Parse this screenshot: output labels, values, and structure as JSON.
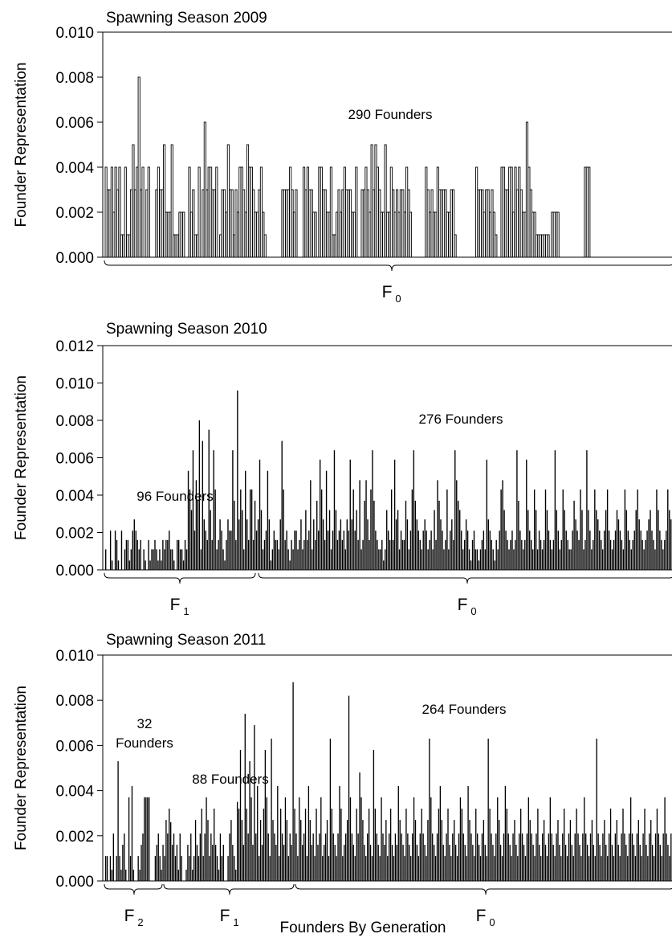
{
  "figure": {
    "xlabel": "Founders By Generation"
  },
  "chart_data": [
    {
      "type": "bar",
      "title": "Spawning Season 2009",
      "ylabel": "Founder Representation",
      "ylim": [
        0,
        0.01
      ],
      "yticks": [
        "0.000",
        "0.002",
        "0.004",
        "0.006",
        "0.008",
        "0.010"
      ],
      "bar_color": "#000000",
      "bar_style": "outlined",
      "groups": [
        {
          "generation": "F",
          "sub": "0",
          "founders_label": "290 Founders",
          "count": 290
        }
      ],
      "values": [
        0.004,
        0.003,
        0.003,
        0.004,
        0.002,
        0.004,
        0.003,
        0.004,
        0.001,
        0.001,
        0.004,
        0.001,
        0.001,
        0.003,
        0.005,
        0.003,
        0.004,
        0.008,
        0.003,
        0.004,
        0.0,
        0.003,
        0.004,
        0.0,
        0.0,
        0.0,
        0.003,
        0.004,
        0.003,
        0.003,
        0.005,
        0.002,
        0.002,
        0.002,
        0.005,
        0.001,
        0.001,
        0.001,
        0.002,
        0.002,
        0.002,
        0.0,
        0.0,
        0.004,
        0.002,
        0.003,
        0.001,
        0.001,
        0.004,
        0.0,
        0.003,
        0.006,
        0.003,
        0.004,
        0.004,
        0.003,
        0.003,
        0.004,
        0.0,
        0.001,
        0.003,
        0.003,
        0.002,
        0.005,
        0.003,
        0.003,
        0.001,
        0.003,
        0.002,
        0.004,
        0.004,
        0.003,
        0.002,
        0.005,
        0.004,
        0.004,
        0.003,
        0.002,
        0.002,
        0.003,
        0.004,
        0.002,
        0.001,
        0.0,
        0.0,
        0.0,
        0.0,
        0.0,
        0.0,
        0.0,
        0.0,
        0.003,
        0.003,
        0.003,
        0.003,
        0.004,
        0.003,
        0.002,
        0.003,
        0.0,
        0.0,
        0.0,
        0.004,
        0.003,
        0.004,
        0.003,
        0.003,
        0.002,
        0.002,
        0.0,
        0.004,
        0.004,
        0.003,
        0.003,
        0.002,
        0.002,
        0.004,
        0.001,
        0.001,
        0.002,
        0.003,
        0.002,
        0.003,
        0.004,
        0.003,
        0.003,
        0.003,
        0.002,
        0.002,
        0.004,
        0.0,
        0.0,
        0.003,
        0.003,
        0.004,
        0.003,
        0.002,
        0.005,
        0.003,
        0.005,
        0.004,
        0.003,
        0.002,
        0.002,
        0.005,
        0.002,
        0.002,
        0.004,
        0.003,
        0.002,
        0.003,
        0.002,
        0.003,
        0.003,
        0.002,
        0.004,
        0.003,
        0.002,
        0.0,
        0.0,
        0.0,
        0.0,
        0.0,
        0.0,
        0.0,
        0.004,
        0.003,
        0.002,
        0.003,
        0.002,
        0.002,
        0.004,
        0.003,
        0.003,
        0.003,
        0.003,
        0.002,
        0.002,
        0.003,
        0.003,
        0.001,
        0.0,
        0.0,
        0.0,
        0.0,
        0.0,
        0.0,
        0.0,
        0.0,
        0.0,
        0.0,
        0.004,
        0.003,
        0.003,
        0.003,
        0.002,
        0.003,
        0.003,
        0.002,
        0.003,
        0.002,
        0.001,
        0.0,
        0.0,
        0.004,
        0.004,
        0.003,
        0.003,
        0.004,
        0.004,
        0.002,
        0.004,
        0.003,
        0.004,
        0.003,
        0.002,
        0.002,
        0.006,
        0.004,
        0.003,
        0.002,
        0.002,
        0.001,
        0.001,
        0.001,
        0.001,
        0.001,
        0.001,
        0.001,
        0.0,
        0.002,
        0.002,
        0.002,
        0.002,
        0.0,
        0.0,
        0.0,
        0.0,
        0.0,
        0.0,
        0.0,
        0.0,
        0.0,
        0.0,
        0.0,
        0.0,
        0.0,
        0.004,
        0.004,
        0.004,
        0.0,
        0.0,
        0.0,
        0.0,
        0.0,
        0.0,
        0.0,
        0.0,
        0.0,
        0.0,
        0.0,
        0.0,
        0.0,
        0.0,
        0.0,
        0.0,
        0.0,
        0.0,
        0.0,
        0.0,
        0.0,
        0.0,
        0.0,
        0.0,
        0.0,
        0.0,
        0.0,
        0.0,
        0.0,
        0.0,
        0.0,
        0.0,
        0.0,
        0.0,
        0.0,
        0.0,
        0.0,
        0.0,
        0.0,
        0.0,
        0.0,
        0.0,
        0.0
      ]
    },
    {
      "type": "bar",
      "title": "Spawning Season 2010",
      "ylabel": "Founder Representation",
      "ylim": [
        0,
        0.012
      ],
      "yticks": [
        "0.000",
        "0.002",
        "0.004",
        "0.006",
        "0.008",
        "0.010",
        "0.012"
      ],
      "bar_color": "#000000",
      "bar_style": "solid",
      "groups": [
        {
          "generation": "F",
          "sub": "1",
          "founders_label": "96 Founders",
          "count": 96
        },
        {
          "generation": "F",
          "sub": "0",
          "founders_label": "276 Founders",
          "count": 276
        }
      ],
      "values": [
        0.0011,
        0.0,
        0.0,
        0.0021,
        0.0005,
        0.0,
        0.0021,
        0.0016,
        0.0005,
        0.0,
        0.0021,
        0.0,
        0.0011,
        0.0016,
        0.0016,
        0.0005,
        0.0011,
        0.0021,
        0.0027,
        0.0021,
        0.0016,
        0.0011,
        0.0016,
        0.0,
        0.0011,
        0.0005,
        0.0,
        0.0016,
        0.0005,
        0.0011,
        0.0011,
        0.0016,
        0.0011,
        0.0005,
        0.0011,
        0.0005,
        0.0016,
        0.0011,
        0.0016,
        0.0016,
        0.0021,
        0.0011,
        0.0011,
        0.0005,
        0.0,
        0.0016,
        0.0016,
        0.0011,
        0.0011,
        0.0005,
        0.0016,
        0.0011,
        0.0053,
        0.0043,
        0.0032,
        0.0064,
        0.0021,
        0.0048,
        0.0037,
        0.008,
        0.0011,
        0.0069,
        0.0027,
        0.0021,
        0.0016,
        0.0075,
        0.0032,
        0.0016,
        0.0064,
        0.0043,
        0.0011,
        0.0016,
        0.0027,
        0.0021,
        0.0011,
        0.0005,
        0.0016,
        0.0027,
        0.0021,
        0.0021,
        0.0064,
        0.0037,
        0.0016,
        0.0096,
        0.0027,
        0.0043,
        0.0032,
        0.0011,
        0.0053,
        0.0027,
        0.0016,
        0.0043,
        0.0043,
        0.0016,
        0.0037,
        0.0021,
        0.0027,
        0.0059,
        0.0032,
        0.0011,
        0.0016,
        0.0021,
        0.0053,
        0.0027,
        0.0005,
        0.0011,
        0.0021,
        0.0016,
        0.0016,
        0.0011,
        0.0027,
        0.0069,
        0.0043,
        0.0016,
        0.0021,
        0.0011,
        0.0005,
        0.0016,
        0.0011,
        0.0021,
        0.0021,
        0.0011,
        0.0016,
        0.0027,
        0.0011,
        0.0016,
        0.0032,
        0.0016,
        0.0021,
        0.0048,
        0.0011,
        0.0027,
        0.0016,
        0.0037,
        0.0021,
        0.0059,
        0.0043,
        0.0027,
        0.0016,
        0.0053,
        0.0021,
        0.0032,
        0.0011,
        0.0021,
        0.0064,
        0.0032,
        0.0016,
        0.0021,
        0.0027,
        0.0016,
        0.0021,
        0.0011,
        0.0027,
        0.0021,
        0.0059,
        0.0027,
        0.0043,
        0.0021,
        0.0032,
        0.0016,
        0.0048,
        0.0011,
        0.0016,
        0.0037,
        0.0048,
        0.0027,
        0.0016,
        0.0043,
        0.0064,
        0.0037,
        0.0021,
        0.0016,
        0.0011,
        0.0011,
        0.0016,
        0.0005,
        0.0011,
        0.0032,
        0.0021,
        0.0016,
        0.0043,
        0.0016,
        0.0059,
        0.0027,
        0.0032,
        0.0011,
        0.0021,
        0.0016,
        0.0016,
        0.0037,
        0.0027,
        0.0011,
        0.0021,
        0.0043,
        0.0064,
        0.0037,
        0.0027,
        0.0021,
        0.0016,
        0.0011,
        0.0021,
        0.0027,
        0.0021,
        0.0011,
        0.0016,
        0.0021,
        0.0011,
        0.0032,
        0.0016,
        0.0048,
        0.0037,
        0.0027,
        0.0021,
        0.0011,
        0.0016,
        0.0043,
        0.0011,
        0.0021,
        0.0027,
        0.0016,
        0.0064,
        0.0048,
        0.0037,
        0.0032,
        0.0021,
        0.0011,
        0.0016,
        0.0027,
        0.0021,
        0.0011,
        0.0005,
        0.0016,
        0.0021,
        0.0011,
        0.0011,
        0.0005,
        0.0011,
        0.0016,
        0.0021,
        0.0011,
        0.0059,
        0.0027,
        0.0021,
        0.0016,
        0.0011,
        0.0005,
        0.0016,
        0.0011,
        0.0021,
        0.0043,
        0.0048,
        0.0032,
        0.0021,
        0.0016,
        0.0011,
        0.0016,
        0.0021,
        0.0011,
        0.0016,
        0.0064,
        0.0037,
        0.0021,
        0.0016,
        0.0011,
        0.0016,
        0.0059,
        0.0032,
        0.0021,
        0.0016,
        0.0011,
        0.0043,
        0.0032,
        0.0011,
        0.0021,
        0.0016,
        0.0011,
        0.0016,
        0.0043,
        0.0032,
        0.0021,
        0.0016,
        0.0011,
        0.0016,
        0.0064,
        0.0032,
        0.0021,
        0.0011,
        0.0016,
        0.0043,
        0.0032,
        0.0021,
        0.0016,
        0.0011,
        0.0011,
        0.0021,
        0.0037,
        0.0027,
        0.0021,
        0.0016,
        0.0043,
        0.0032,
        0.0011,
        0.0016,
        0.0064,
        0.0032,
        0.0021,
        0.0011,
        0.0016,
        0.0043,
        0.0032,
        0.0027,
        0.0021,
        0.0016,
        0.0011,
        0.0021,
        0.0032,
        0.0043,
        0.0021,
        0.0016,
        0.0011,
        0.0016,
        0.0021,
        0.0032,
        0.0027,
        0.0021,
        0.0016,
        0.0011,
        0.0043,
        0.0032,
        0.0021,
        0.0016,
        0.0011,
        0.0016,
        0.0021,
        0.0032,
        0.0043,
        0.0027,
        0.0021,
        0.0016,
        0.0011,
        0.0016,
        0.0021,
        0.0027,
        0.0032,
        0.0021,
        0.0016,
        0.0011,
        0.0043,
        0.0032,
        0.0021,
        0.0016,
        0.0011,
        0.0016,
        0.0021,
        0.0043,
        0.0032,
        0.0027,
        0.0021
      ]
    },
    {
      "type": "bar",
      "title": "Spawning Season 2011",
      "ylabel": "Founder Representation",
      "ylim": [
        0,
        0.01
      ],
      "yticks": [
        "0.000",
        "0.002",
        "0.004",
        "0.006",
        "0.008",
        "0.010"
      ],
      "bar_color": "#000000",
      "bar_style": "solid",
      "groups": [
        {
          "generation": "F",
          "sub": "2",
          "founders_label": "32\nFounders",
          "count": 32
        },
        {
          "generation": "F",
          "sub": "1",
          "founders_label": "88 Founders",
          "count": 88
        },
        {
          "generation": "F",
          "sub": "0",
          "founders_label": "264 Founders",
          "count": 264
        }
      ],
      "values": [
        0.0011,
        0.0011,
        0.0,
        0.0011,
        0.0005,
        0.0021,
        0.0,
        0.0011,
        0.0053,
        0.0011,
        0.0005,
        0.0016,
        0.0021,
        0.0005,
        0.0,
        0.0037,
        0.0011,
        0.0042,
        0.0005,
        0.0,
        0.0,
        0.0011,
        0.0005,
        0.0016,
        0.0021,
        0.0037,
        0.0037,
        0.0037,
        0.0037,
        0.0,
        0.0,
        0.0,
        0.0011,
        0.0016,
        0.0021,
        0.0011,
        0.0005,
        0.0016,
        0.0011,
        0.0027,
        0.0021,
        0.0032,
        0.0026,
        0.0016,
        0.0021,
        0.0011,
        0.0016,
        0.0005,
        0.0021,
        0.0011,
        0.0,
        0.0,
        0.0005,
        0.0016,
        0.0011,
        0.0021,
        0.0005,
        0.0011,
        0.0027,
        0.0016,
        0.0011,
        0.0021,
        0.0032,
        0.0011,
        0.0021,
        0.0037,
        0.0027,
        0.0011,
        0.0021,
        0.0016,
        0.0032,
        0.0016,
        0.0011,
        0.0005,
        0.0021,
        0.0011,
        0.0016,
        0.0,
        0.0,
        0.0011,
        0.0021,
        0.0027,
        0.0016,
        0.0011,
        0.0005,
        0.0035,
        0.0032,
        0.0058,
        0.0027,
        0.0016,
        0.0074,
        0.0032,
        0.0021,
        0.0053,
        0.0037,
        0.0016,
        0.0069,
        0.0021,
        0.0042,
        0.0011,
        0.0027,
        0.0016,
        0.0032,
        0.0058,
        0.0037,
        0.0021,
        0.0011,
        0.0063,
        0.0027,
        0.0021,
        0.0016,
        0.0042,
        0.0011,
        0.0032,
        0.0021,
        0.0016,
        0.0037,
        0.0027,
        0.0011,
        0.0021,
        0.0016,
        0.0088,
        0.0032,
        0.0021,
        0.0011,
        0.0037,
        0.0027,
        0.0016,
        0.0021,
        0.0032,
        0.0011,
        0.0042,
        0.0027,
        0.0016,
        0.0021,
        0.0011,
        0.0032,
        0.0016,
        0.0021,
        0.0037,
        0.0011,
        0.0016,
        0.0021,
        0.0027,
        0.0011,
        0.0063,
        0.0032,
        0.0021,
        0.0016,
        0.0011,
        0.0021,
        0.0042,
        0.0032,
        0.0011,
        0.0016,
        0.0021,
        0.0027,
        0.0082,
        0.0037,
        0.0021,
        0.0016,
        0.0011,
        0.0032,
        0.0021,
        0.0048,
        0.0037,
        0.0027,
        0.0016,
        0.0011,
        0.0021,
        0.0032,
        0.0016,
        0.0011,
        0.0058,
        0.0032,
        0.0021,
        0.0016,
        0.0011,
        0.0037,
        0.0021,
        0.0016,
        0.0027,
        0.0011,
        0.0021,
        0.0032,
        0.0016,
        0.0011,
        0.0021,
        0.0016,
        0.0042,
        0.0027,
        0.0021,
        0.0016,
        0.0011,
        0.0032,
        0.0021,
        0.0016,
        0.0011,
        0.0021,
        0.0037,
        0.0027,
        0.0016,
        0.0011,
        0.0021,
        0.0032,
        0.0021,
        0.0016,
        0.0011,
        0.0027,
        0.0063,
        0.0037,
        0.0021,
        0.0016,
        0.0011,
        0.0021,
        0.0032,
        0.0042,
        0.0027,
        0.0016,
        0.0011,
        0.0021,
        0.0032,
        0.0016,
        0.0011,
        0.0021,
        0.0027,
        0.0016,
        0.0011,
        0.0021,
        0.0037,
        0.0032,
        0.0021,
        0.0016,
        0.0011,
        0.0042,
        0.0027,
        0.0021,
        0.0016,
        0.0011,
        0.0032,
        0.0021,
        0.0016,
        0.0011,
        0.0021,
        0.0027,
        0.0016,
        0.0011,
        0.0063,
        0.0032,
        0.0021,
        0.0016,
        0.0011,
        0.0021,
        0.0037,
        0.0027,
        0.0016,
        0.0011,
        0.0021,
        0.0042,
        0.0032,
        0.0021,
        0.0016,
        0.0011,
        0.0021,
        0.0027,
        0.0016,
        0.0011,
        0.0021,
        0.0032,
        0.0021,
        0.0016,
        0.0011,
        0.0021,
        0.0037,
        0.0027,
        0.0021,
        0.0016,
        0.0011,
        0.0021,
        0.0032,
        0.0016,
        0.0011,
        0.0021,
        0.0027,
        0.0016,
        0.0011,
        0.0021,
        0.0037,
        0.0021,
        0.0016,
        0.0011,
        0.0021,
        0.0027,
        0.0016,
        0.0011,
        0.0021,
        0.0032,
        0.0016,
        0.0011,
        0.0021,
        0.0027,
        0.0016,
        0.0011,
        0.0021,
        0.0032,
        0.0021,
        0.0016,
        0.0011,
        0.0021,
        0.0037,
        0.0021,
        0.0016,
        0.0011,
        0.0021,
        0.0027,
        0.0016,
        0.0011,
        0.0063,
        0.0021,
        0.0016,
        0.0011,
        0.0021,
        0.0027,
        0.0016,
        0.0011,
        0.0021,
        0.0032,
        0.0016,
        0.0011,
        0.0021,
        0.0027,
        0.0016,
        0.0011,
        0.0021,
        0.0032,
        0.0021,
        0.0016,
        0.0011,
        0.0021,
        0.0037,
        0.0021,
        0.0016,
        0.0011,
        0.0021,
        0.0027,
        0.0016,
        0.0011,
        0.0021,
        0.0032,
        0.0016,
        0.0011,
        0.0021,
        0.0027,
        0.0016,
        0.0011,
        0.0021,
        0.0032,
        0.0021,
        0.0016,
        0.0011,
        0.0021,
        0.0037,
        0.0021,
        0.0016,
        0.0011,
        0.0021,
        0.0027
      ]
    }
  ]
}
